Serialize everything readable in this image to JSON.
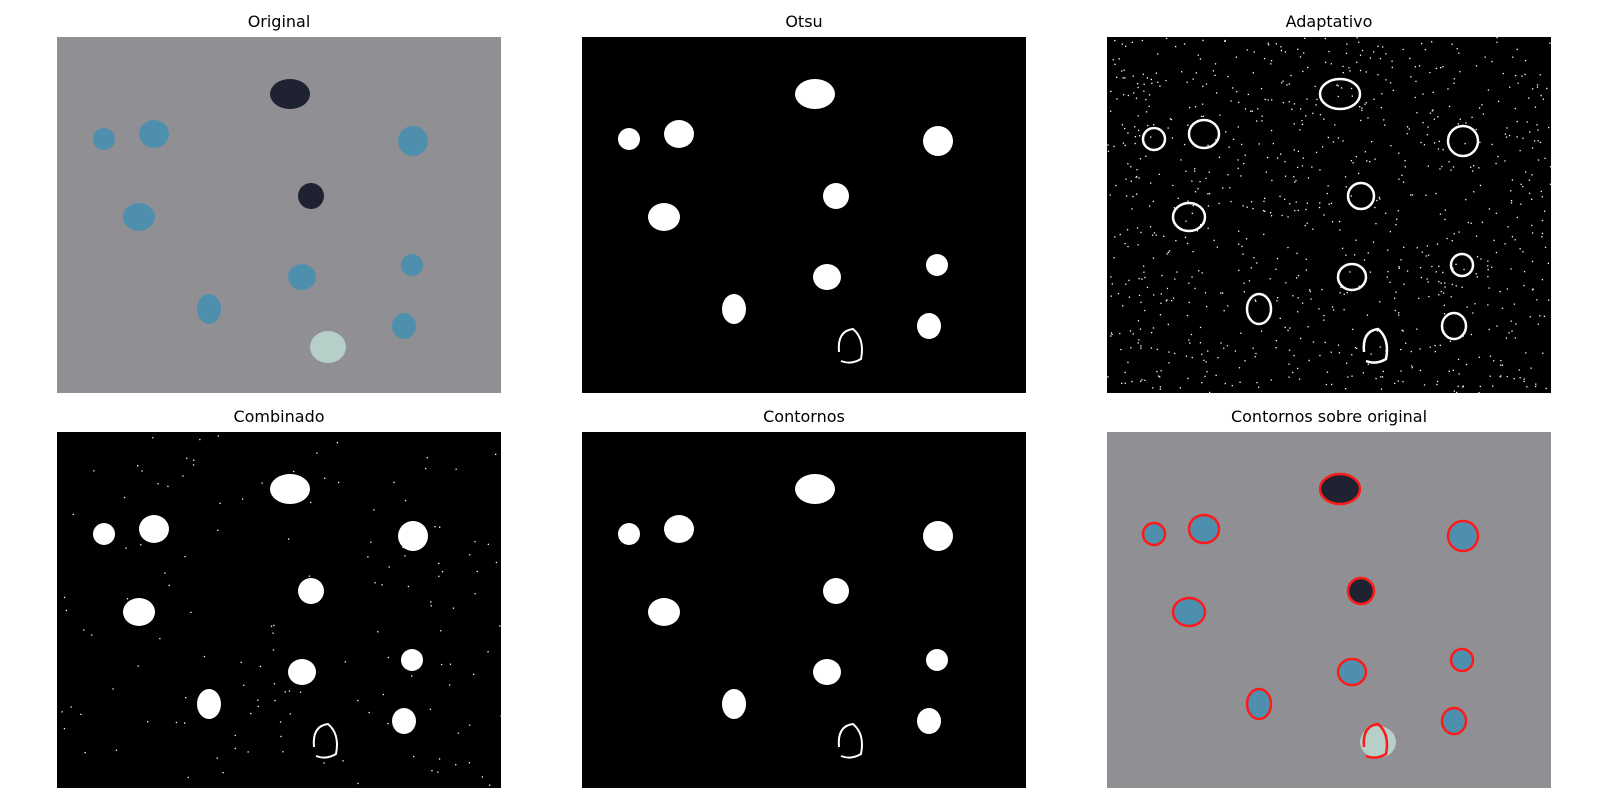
{
  "figure": {
    "panels": [
      {
        "title": "Original"
      },
      {
        "title": "Otsu"
      },
      {
        "title": "Adaptativo"
      },
      {
        "title": "Combinado"
      },
      {
        "title": "Contornos"
      },
      {
        "title": "Contornos sobre original"
      }
    ]
  },
  "colors": {
    "page_background": "#ffffff",
    "photo_background": "#8f8f94",
    "mask_background": "#000000",
    "mask_foreground": "#ffffff",
    "contour_color": "#ff1a1a",
    "object_blue": "#4f8fae",
    "object_dark": "#1f2230",
    "object_pale": "#b7cfc9"
  },
  "objects": [
    {
      "id": "obj1",
      "color": "blue"
    },
    {
      "id": "obj2",
      "color": "blue"
    },
    {
      "id": "obj3",
      "color": "dark"
    },
    {
      "id": "obj4",
      "color": "blue"
    },
    {
      "id": "obj5",
      "color": "blue"
    },
    {
      "id": "obj6",
      "color": "dark"
    },
    {
      "id": "obj7",
      "color": "blue"
    },
    {
      "id": "obj8",
      "color": "blue"
    },
    {
      "id": "obj9",
      "color": "blue"
    },
    {
      "id": "obj10",
      "color": "blue"
    },
    {
      "id": "obj11",
      "color": "blue"
    },
    {
      "id": "obj12",
      "color": "pale"
    }
  ]
}
